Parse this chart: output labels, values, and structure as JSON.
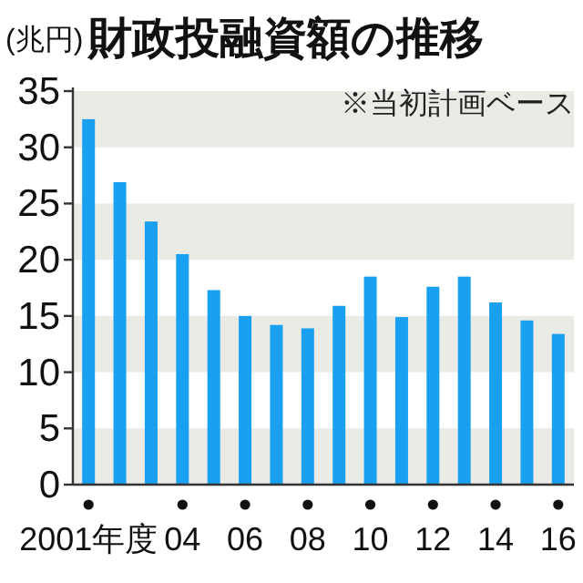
{
  "chart_data": {
    "type": "bar",
    "title": "財政投融資額の推移",
    "ylabel": "(兆円)",
    "annotations": [
      "※当初計画ベース"
    ],
    "categories": [
      "2001年度",
      null,
      null,
      "04",
      null,
      "06",
      null,
      "08",
      null,
      "10",
      null,
      "12",
      null,
      "14",
      null,
      "16"
    ],
    "values": [
      32.5,
      26.9,
      23.4,
      20.5,
      17.3,
      15.0,
      14.2,
      13.9,
      15.9,
      18.5,
      14.9,
      17.6,
      18.5,
      16.2,
      14.6,
      13.4
    ],
    "color": "#1aa0f0",
    "ylim": [
      0,
      35
    ],
    "yticks": [
      0,
      5,
      10,
      15,
      20,
      25,
      30,
      35
    ],
    "bands": [
      {
        "axis": "y",
        "from": 0,
        "to": 5,
        "color": "#ebebe6"
      },
      {
        "axis": "y",
        "from": 10,
        "to": 15,
        "color": "#ebebe6"
      },
      {
        "axis": "y",
        "from": 20,
        "to": 25,
        "color": "#ebebe6"
      },
      {
        "axis": "y",
        "from": 30,
        "to": 35,
        "color": "#ebebe6"
      }
    ]
  }
}
